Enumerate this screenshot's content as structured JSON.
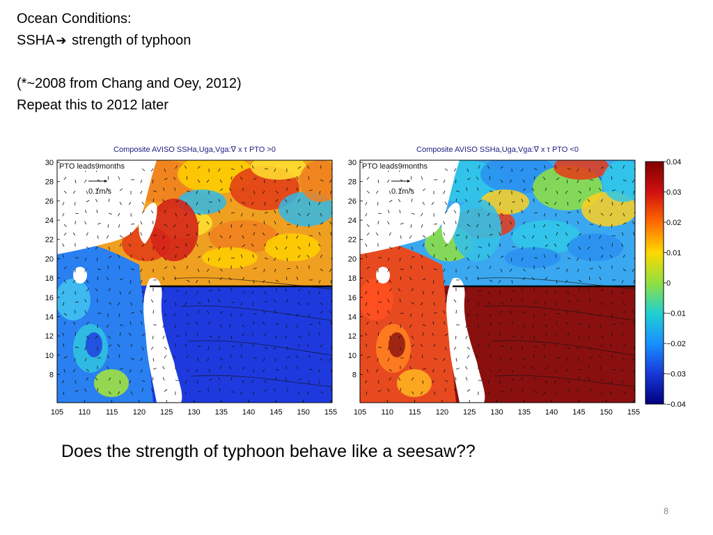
{
  "heading": {
    "line1": "Ocean Conditions:",
    "line2_pre": "SSHA",
    "line2_post": " strength of typhoon",
    "line3": "(*~2008 from Chang and Oey, 2012)",
    "line4": "Repeat this to 2012 later"
  },
  "panels": [
    {
      "title": "Composite AVISO SSHa,Uga,Vga:∇ x τ PTO >0",
      "lead_label": "PTO leads9months",
      "scale_label": "0.1m/s",
      "ocean_color": "#1e3adf",
      "highlight_color": "#d42418"
    },
    {
      "title": "Composite AVISO SSHa,Uga,Vga:∇ x τ PTO <0",
      "lead_label": "PTO leads9months",
      "scale_label": "0.1m/s",
      "ocean_color": "#8a1010",
      "highlight_color": "#35c0e6"
    }
  ],
  "axes": {
    "x_ticks": [
      "105",
      "110",
      "115",
      "120",
      "125",
      "130",
      "135",
      "140",
      "145",
      "150",
      "155"
    ],
    "y_ticks": [
      "30",
      "28",
      "26",
      "24",
      "22",
      "20",
      "18",
      "16",
      "14",
      "12",
      "10",
      "8"
    ]
  },
  "colorbar": {
    "ticks": [
      "0.04",
      "0.03",
      "0.02",
      "0.01",
      "0",
      "−0.01",
      "−0.02",
      "−0.03",
      "−0.04"
    ],
    "colors": [
      "#7f0000",
      "#d01010",
      "#ff6a00",
      "#ffd800",
      "#90e040",
      "#20d0d0",
      "#1890ff",
      "#1838d8",
      "#00007f"
    ]
  },
  "question": "Does the strength of typhoon behave like a seesaw??",
  "page_number": "8"
}
